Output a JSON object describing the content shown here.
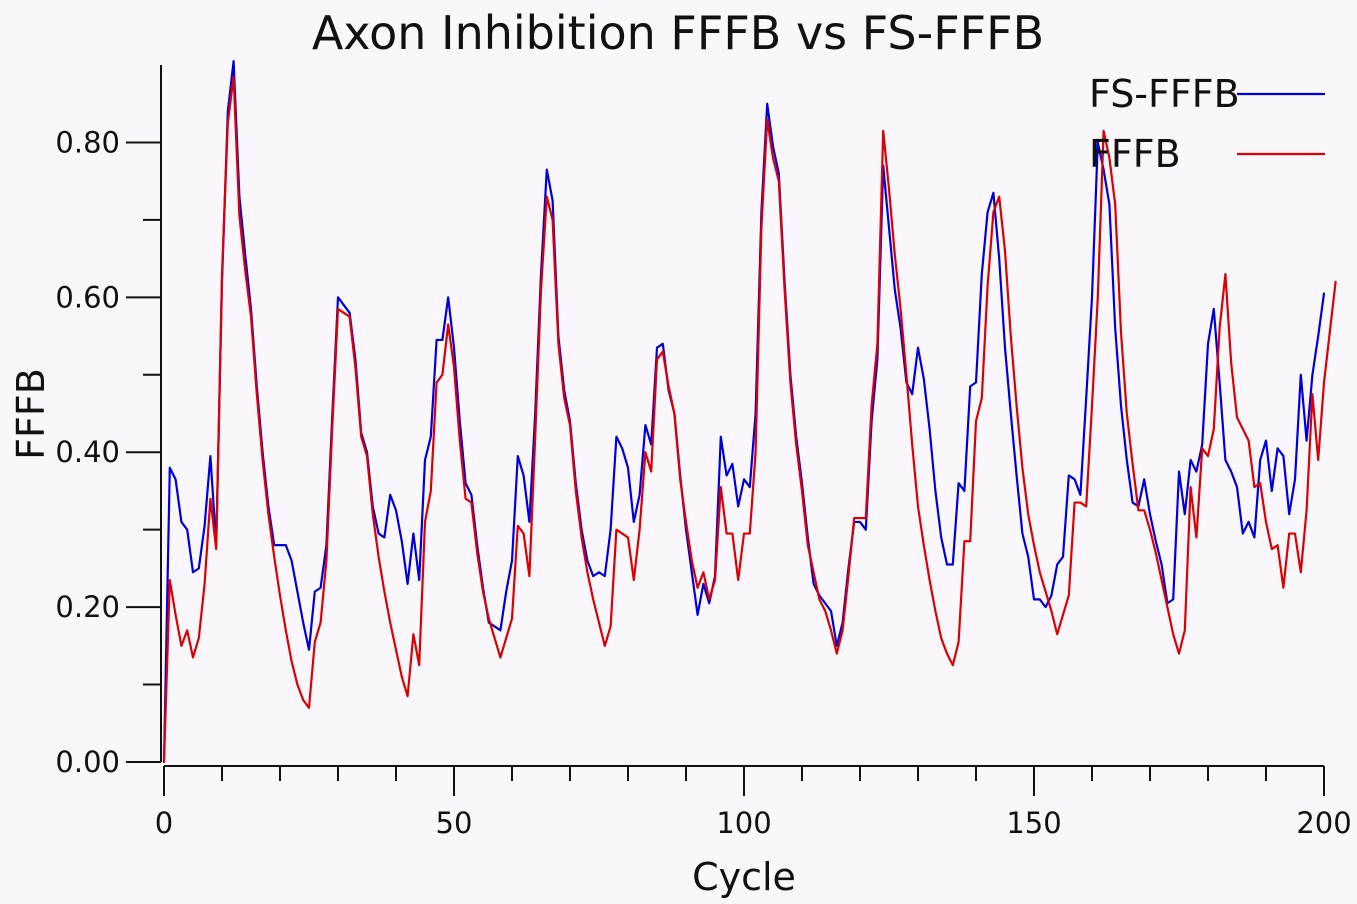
{
  "chart_data": {
    "type": "line",
    "title": "Axon Inhibition FFFB vs FS-FFFB",
    "xlabel": "Cycle",
    "ylabel": "FFFB",
    "xlim": [
      0,
      200
    ],
    "ylim": [
      0,
      0.9
    ],
    "x_ticks": [
      "0",
      "50",
      "100",
      "150",
      "200"
    ],
    "y_ticks": [
      "0.00",
      "0.20",
      "0.40",
      "0.60",
      "0.80"
    ],
    "grid": false,
    "legend_position": "top-right",
    "series": [
      {
        "name": "FS-FFFB",
        "color": "#0000dd",
        "values": [
          0.0,
          0.38,
          0.365,
          0.31,
          0.3,
          0.245,
          0.25,
          0.305,
          0.395,
          0.28,
          0.62,
          0.84,
          0.905,
          0.73,
          0.655,
          0.585,
          0.485,
          0.4,
          0.33,
          0.28,
          0.28,
          0.28,
          0.26,
          0.22,
          0.18,
          0.145,
          0.22,
          0.225,
          0.28,
          0.445,
          0.6,
          0.59,
          0.58,
          0.52,
          0.425,
          0.4,
          0.33,
          0.295,
          0.29,
          0.345,
          0.325,
          0.285,
          0.23,
          0.295,
          0.235,
          0.39,
          0.42,
          0.545,
          0.545,
          0.6,
          0.535,
          0.44,
          0.36,
          0.345,
          0.28,
          0.225,
          0.18,
          0.175,
          0.17,
          0.22,
          0.26,
          0.395,
          0.37,
          0.31,
          0.45,
          0.63,
          0.765,
          0.725,
          0.55,
          0.48,
          0.44,
          0.36,
          0.3,
          0.26,
          0.24,
          0.245,
          0.24,
          0.3,
          0.42,
          0.405,
          0.38,
          0.31,
          0.345,
          0.435,
          0.41,
          0.535,
          0.54,
          0.48,
          0.45,
          0.37,
          0.3,
          0.245,
          0.19,
          0.23,
          0.205,
          0.24,
          0.42,
          0.37,
          0.385,
          0.33,
          0.365,
          0.355,
          0.45,
          0.71,
          0.85,
          0.795,
          0.76,
          0.62,
          0.5,
          0.42,
          0.36,
          0.29,
          0.23,
          0.215,
          0.205,
          0.195,
          0.15,
          0.18,
          0.25,
          0.31,
          0.31,
          0.3,
          0.44,
          0.52,
          0.77,
          0.69,
          0.61,
          0.56,
          0.49,
          0.475,
          0.535,
          0.495,
          0.43,
          0.35,
          0.29,
          0.255,
          0.255,
          0.36,
          0.35,
          0.485,
          0.49,
          0.63,
          0.71,
          0.735,
          0.65,
          0.535,
          0.45,
          0.37,
          0.295,
          0.265,
          0.21,
          0.21,
          0.2,
          0.215,
          0.255,
          0.265,
          0.37,
          0.365,
          0.345,
          0.47,
          0.6,
          0.8,
          0.765,
          0.72,
          0.56,
          0.46,
          0.39,
          0.335,
          0.33,
          0.365,
          0.32,
          0.285,
          0.255,
          0.205,
          0.21,
          0.375,
          0.32,
          0.39,
          0.375,
          0.41,
          0.54,
          0.585,
          0.49,
          0.39,
          0.375,
          0.355,
          0.295,
          0.31,
          0.29,
          0.39,
          0.415,
          0.35,
          0.405,
          0.395,
          0.32,
          0.365,
          0.5,
          0.415,
          0.5,
          0.55,
          0.605
        ]
      },
      {
        "name": "FFFB",
        "color": "#dd0000",
        "values": [
          0.0,
          0.235,
          0.19,
          0.15,
          0.17,
          0.135,
          0.16,
          0.23,
          0.34,
          0.275,
          0.63,
          0.825,
          0.885,
          0.705,
          0.635,
          0.575,
          0.475,
          0.39,
          0.32,
          0.265,
          0.215,
          0.17,
          0.13,
          0.1,
          0.08,
          0.07,
          0.155,
          0.18,
          0.26,
          0.43,
          0.585,
          0.58,
          0.575,
          0.51,
          0.42,
          0.395,
          0.32,
          0.265,
          0.22,
          0.18,
          0.145,
          0.11,
          0.085,
          0.165,
          0.125,
          0.31,
          0.35,
          0.49,
          0.5,
          0.565,
          0.51,
          0.415,
          0.34,
          0.335,
          0.27,
          0.22,
          0.185,
          0.16,
          0.135,
          0.16,
          0.185,
          0.305,
          0.295,
          0.24,
          0.42,
          0.61,
          0.73,
          0.7,
          0.54,
          0.47,
          0.435,
          0.35,
          0.29,
          0.245,
          0.21,
          0.18,
          0.15,
          0.175,
          0.3,
          0.295,
          0.29,
          0.235,
          0.3,
          0.4,
          0.375,
          0.52,
          0.53,
          0.485,
          0.45,
          0.365,
          0.31,
          0.26,
          0.225,
          0.245,
          0.21,
          0.235,
          0.355,
          0.295,
          0.295,
          0.235,
          0.295,
          0.295,
          0.4,
          0.69,
          0.83,
          0.78,
          0.75,
          0.61,
          0.49,
          0.41,
          0.35,
          0.28,
          0.245,
          0.21,
          0.195,
          0.17,
          0.14,
          0.17,
          0.24,
          0.315,
          0.315,
          0.315,
          0.46,
          0.54,
          0.815,
          0.74,
          0.655,
          0.585,
          0.5,
          0.41,
          0.33,
          0.28,
          0.235,
          0.195,
          0.16,
          0.14,
          0.125,
          0.155,
          0.285,
          0.285,
          0.44,
          0.47,
          0.615,
          0.71,
          0.73,
          0.66,
          0.55,
          0.46,
          0.38,
          0.32,
          0.28,
          0.245,
          0.22,
          0.195,
          0.165,
          0.19,
          0.215,
          0.335,
          0.335,
          0.33,
          0.46,
          0.6,
          0.815,
          0.78,
          0.72,
          0.555,
          0.45,
          0.385,
          0.325,
          0.325,
          0.3,
          0.27,
          0.235,
          0.2,
          0.165,
          0.14,
          0.17,
          0.355,
          0.29,
          0.405,
          0.395,
          0.43,
          0.56,
          0.63,
          0.515,
          0.445,
          0.43,
          0.415,
          0.355,
          0.36,
          0.31,
          0.275,
          0.28,
          0.225,
          0.295,
          0.295,
          0.245,
          0.325,
          0.475,
          0.39,
          0.49,
          0.555,
          0.62
        ]
      }
    ]
  }
}
